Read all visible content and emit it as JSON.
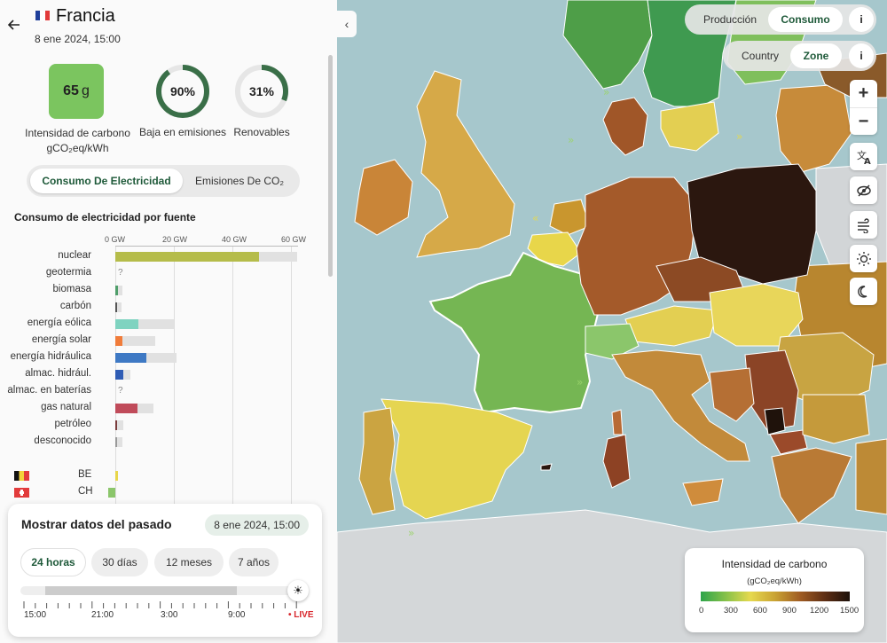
{
  "zone": {
    "name": "Francia",
    "date": "8 ene 2024, 15:00",
    "carbon_intensity_value": "65",
    "carbon_intensity_unit": "g",
    "carbon_intensity_label": "Intensidad de carbono",
    "carbon_intensity_unit_label": "gCO₂eq/kWh",
    "low_carbon_percent": "90%",
    "low_carbon_fraction": 0.9,
    "low_carbon_label": "Baja en emisiones",
    "renewable_percent": "31%",
    "renewable_fraction": 0.31,
    "renewable_label": "Renovables"
  },
  "mode_toggle": {
    "electricity": "Consumo De Electricidad",
    "emissions": "Emisiones De CO₂"
  },
  "chart_data": {
    "type": "bar",
    "title": "Consumo de electricidad por fuente",
    "xlabel": "",
    "ylabel": "",
    "x_unit": "GW",
    "xlim": [
      0,
      62
    ],
    "x_ticks": [
      "0 GW",
      "20 GW",
      "40 GW",
      "60 GW"
    ],
    "x_tick_values": [
      0,
      20,
      40,
      60
    ],
    "categories": [
      "nuclear",
      "geotermia",
      "biomasa",
      "carbón",
      "energía eólica",
      "energía solar",
      "energía hidráulica",
      "almac. hidrául.",
      "almac. en baterías",
      "gas natural",
      "petróleo",
      "desconocido"
    ],
    "series": [
      {
        "values": [
          49,
          null,
          0.8,
          0.2,
          8,
          2.5,
          10.5,
          2.8,
          null,
          7.5,
          0.3,
          0.2
        ],
        "colors": [
          "#b5bc4a",
          "#b5bc4a",
          "#4f9e6a",
          "#555555",
          "#7fd3c0",
          "#f07c3a",
          "#3e79c4",
          "#2f5cb4",
          "#777777",
          "#c04b5a",
          "#7a3c3c",
          "#999999"
        ]
      },
      {
        "values": [
          62,
          null,
          2.3,
          2.2,
          20,
          13.5,
          21,
          5,
          null,
          13,
          2.8,
          2.3
        ]
      }
    ],
    "unknown_marker": "?",
    "exchanges": [
      {
        "zone": "BE",
        "value": 1.0,
        "color": "#e8d64a"
      },
      {
        "zone": "CH",
        "value": -2.5,
        "color": "#8bc66b"
      }
    ]
  },
  "time_controller": {
    "title": "Mostrar datos del pasado",
    "date": "8 ene 2024, 15:00",
    "ranges": [
      "24 horas",
      "30 días",
      "12 meses",
      "7 años"
    ],
    "active_range": "24 horas",
    "axis_labels": [
      "15:00",
      "21:00",
      "3:00",
      "9:00"
    ],
    "live_label": "LIVE"
  },
  "map_controls": {
    "production": "Producción",
    "consumption": "Consumo",
    "country": "Country",
    "zone": "Zone",
    "info": "i",
    "zoom_in": "+",
    "zoom_out": "−"
  },
  "legend": {
    "title": "Intensidad de carbono",
    "unit": "(gCO₂eq/kWh)",
    "ticks": [
      "0",
      "300",
      "600",
      "900",
      "1200",
      "1500"
    ]
  },
  "colors": {
    "accent": "#1f5a3a",
    "ring_fill": "#3a6f48",
    "ring_bg": "#e6e6e6",
    "live": "#d8262c"
  }
}
